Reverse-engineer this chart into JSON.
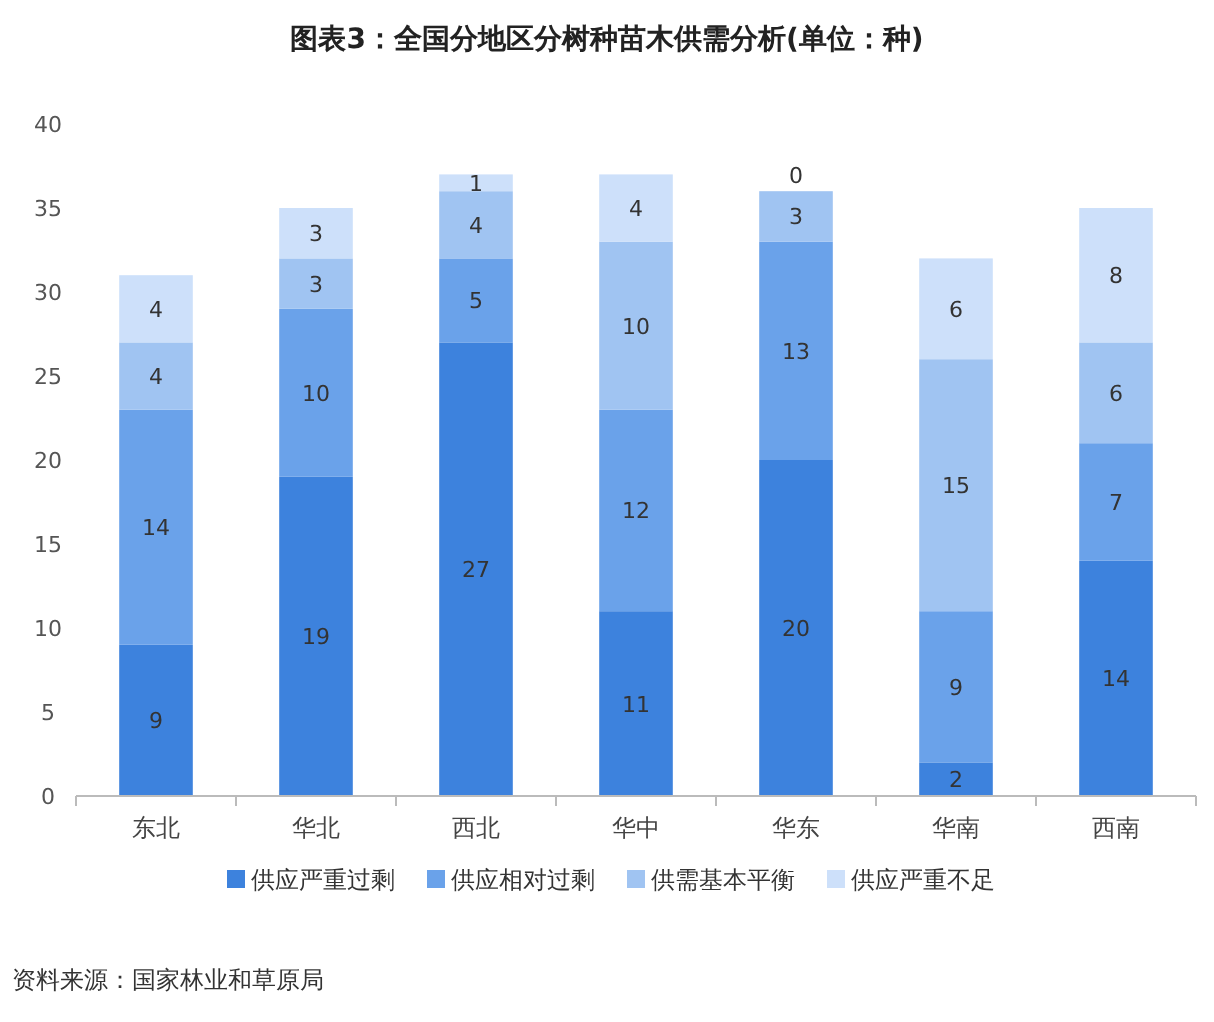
{
  "chart_data": {
    "type": "bar",
    "stacked": true,
    "title": "图表3：全国分地区分树种苗木供需分析(单位：种)",
    "categories": [
      "东北",
      "华北",
      "西北",
      "华中",
      "华东",
      "华南",
      "西南"
    ],
    "series": [
      {
        "name": "供应严重过剩",
        "color": "#3d82dd",
        "values": [
          9,
          19,
          27,
          11,
          20,
          2,
          14
        ]
      },
      {
        "name": "供应相对过剩",
        "color": "#6aa2ea",
        "values": [
          14,
          10,
          5,
          12,
          13,
          9,
          7
        ]
      },
      {
        "name": "供需基本平衡",
        "color": "#a0c4f2",
        "values": [
          4,
          3,
          4,
          10,
          3,
          15,
          6
        ]
      },
      {
        "name": "供应严重不足",
        "color": "#cde0fa",
        "values": [
          4,
          3,
          1,
          4,
          0,
          6,
          8
        ]
      }
    ],
    "ylim": [
      0,
      40
    ],
    "yticks": [
      0,
      5,
      10,
      15,
      20,
      25,
      30,
      35,
      40
    ],
    "grid": false,
    "legend": "bottom",
    "data_labels": true,
    "annotations": [
      "资料来源：国家林业和草原局"
    ]
  }
}
